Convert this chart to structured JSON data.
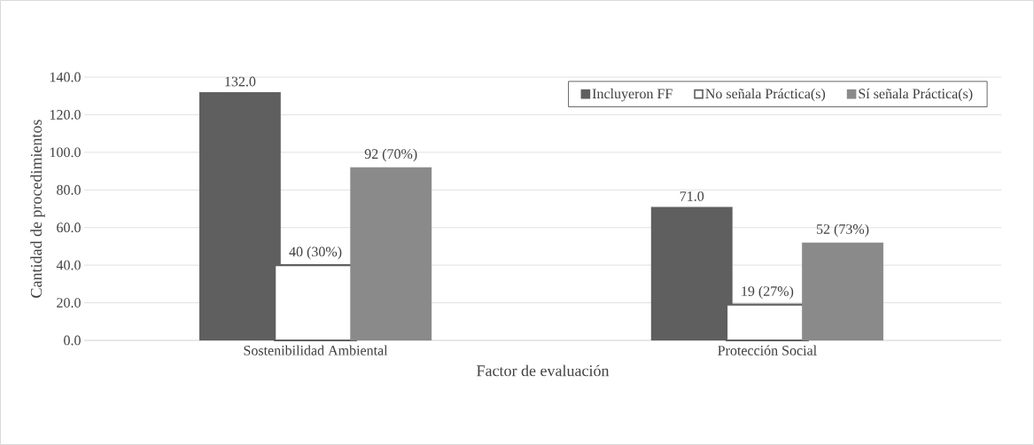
{
  "chart_data": {
    "type": "bar",
    "xlabel": "Factor de evaluación",
    "ylabel": "Cantidad de procedimientos",
    "categories": [
      "Sostenibilidad Ambiental",
      "Protección Social"
    ],
    "series": [
      {
        "name": "Incluyeron FF",
        "color": "#5f5f5f",
        "values": [
          132,
          71
        ],
        "value_labels": [
          "132.0",
          "71.0"
        ]
      },
      {
        "name": "No señala Práctica(s)",
        "color": "#ffffff",
        "values": [
          40,
          19
        ],
        "value_labels": [
          "40 (30%)",
          "19 (27%)"
        ]
      },
      {
        "name": "Sí señala Práctica(s)",
        "color": "#8a8a8a",
        "values": [
          92,
          52
        ],
        "value_labels": [
          "92 (70%)",
          "52 (73%)"
        ]
      }
    ],
    "ylim": [
      0,
      140
    ],
    "yticks": [
      {
        "value": 0,
        "label": "0.0"
      },
      {
        "value": 20,
        "label": "20.0"
      },
      {
        "value": 40,
        "label": "40.0"
      },
      {
        "value": 60,
        "label": "60.0"
      },
      {
        "value": 80,
        "label": "80.0"
      },
      {
        "value": 100,
        "label": "100.0"
      },
      {
        "value": 120,
        "label": "120.0"
      },
      {
        "value": 140,
        "label": "140.0"
      }
    ],
    "grid": "y",
    "legend": "top right"
  }
}
